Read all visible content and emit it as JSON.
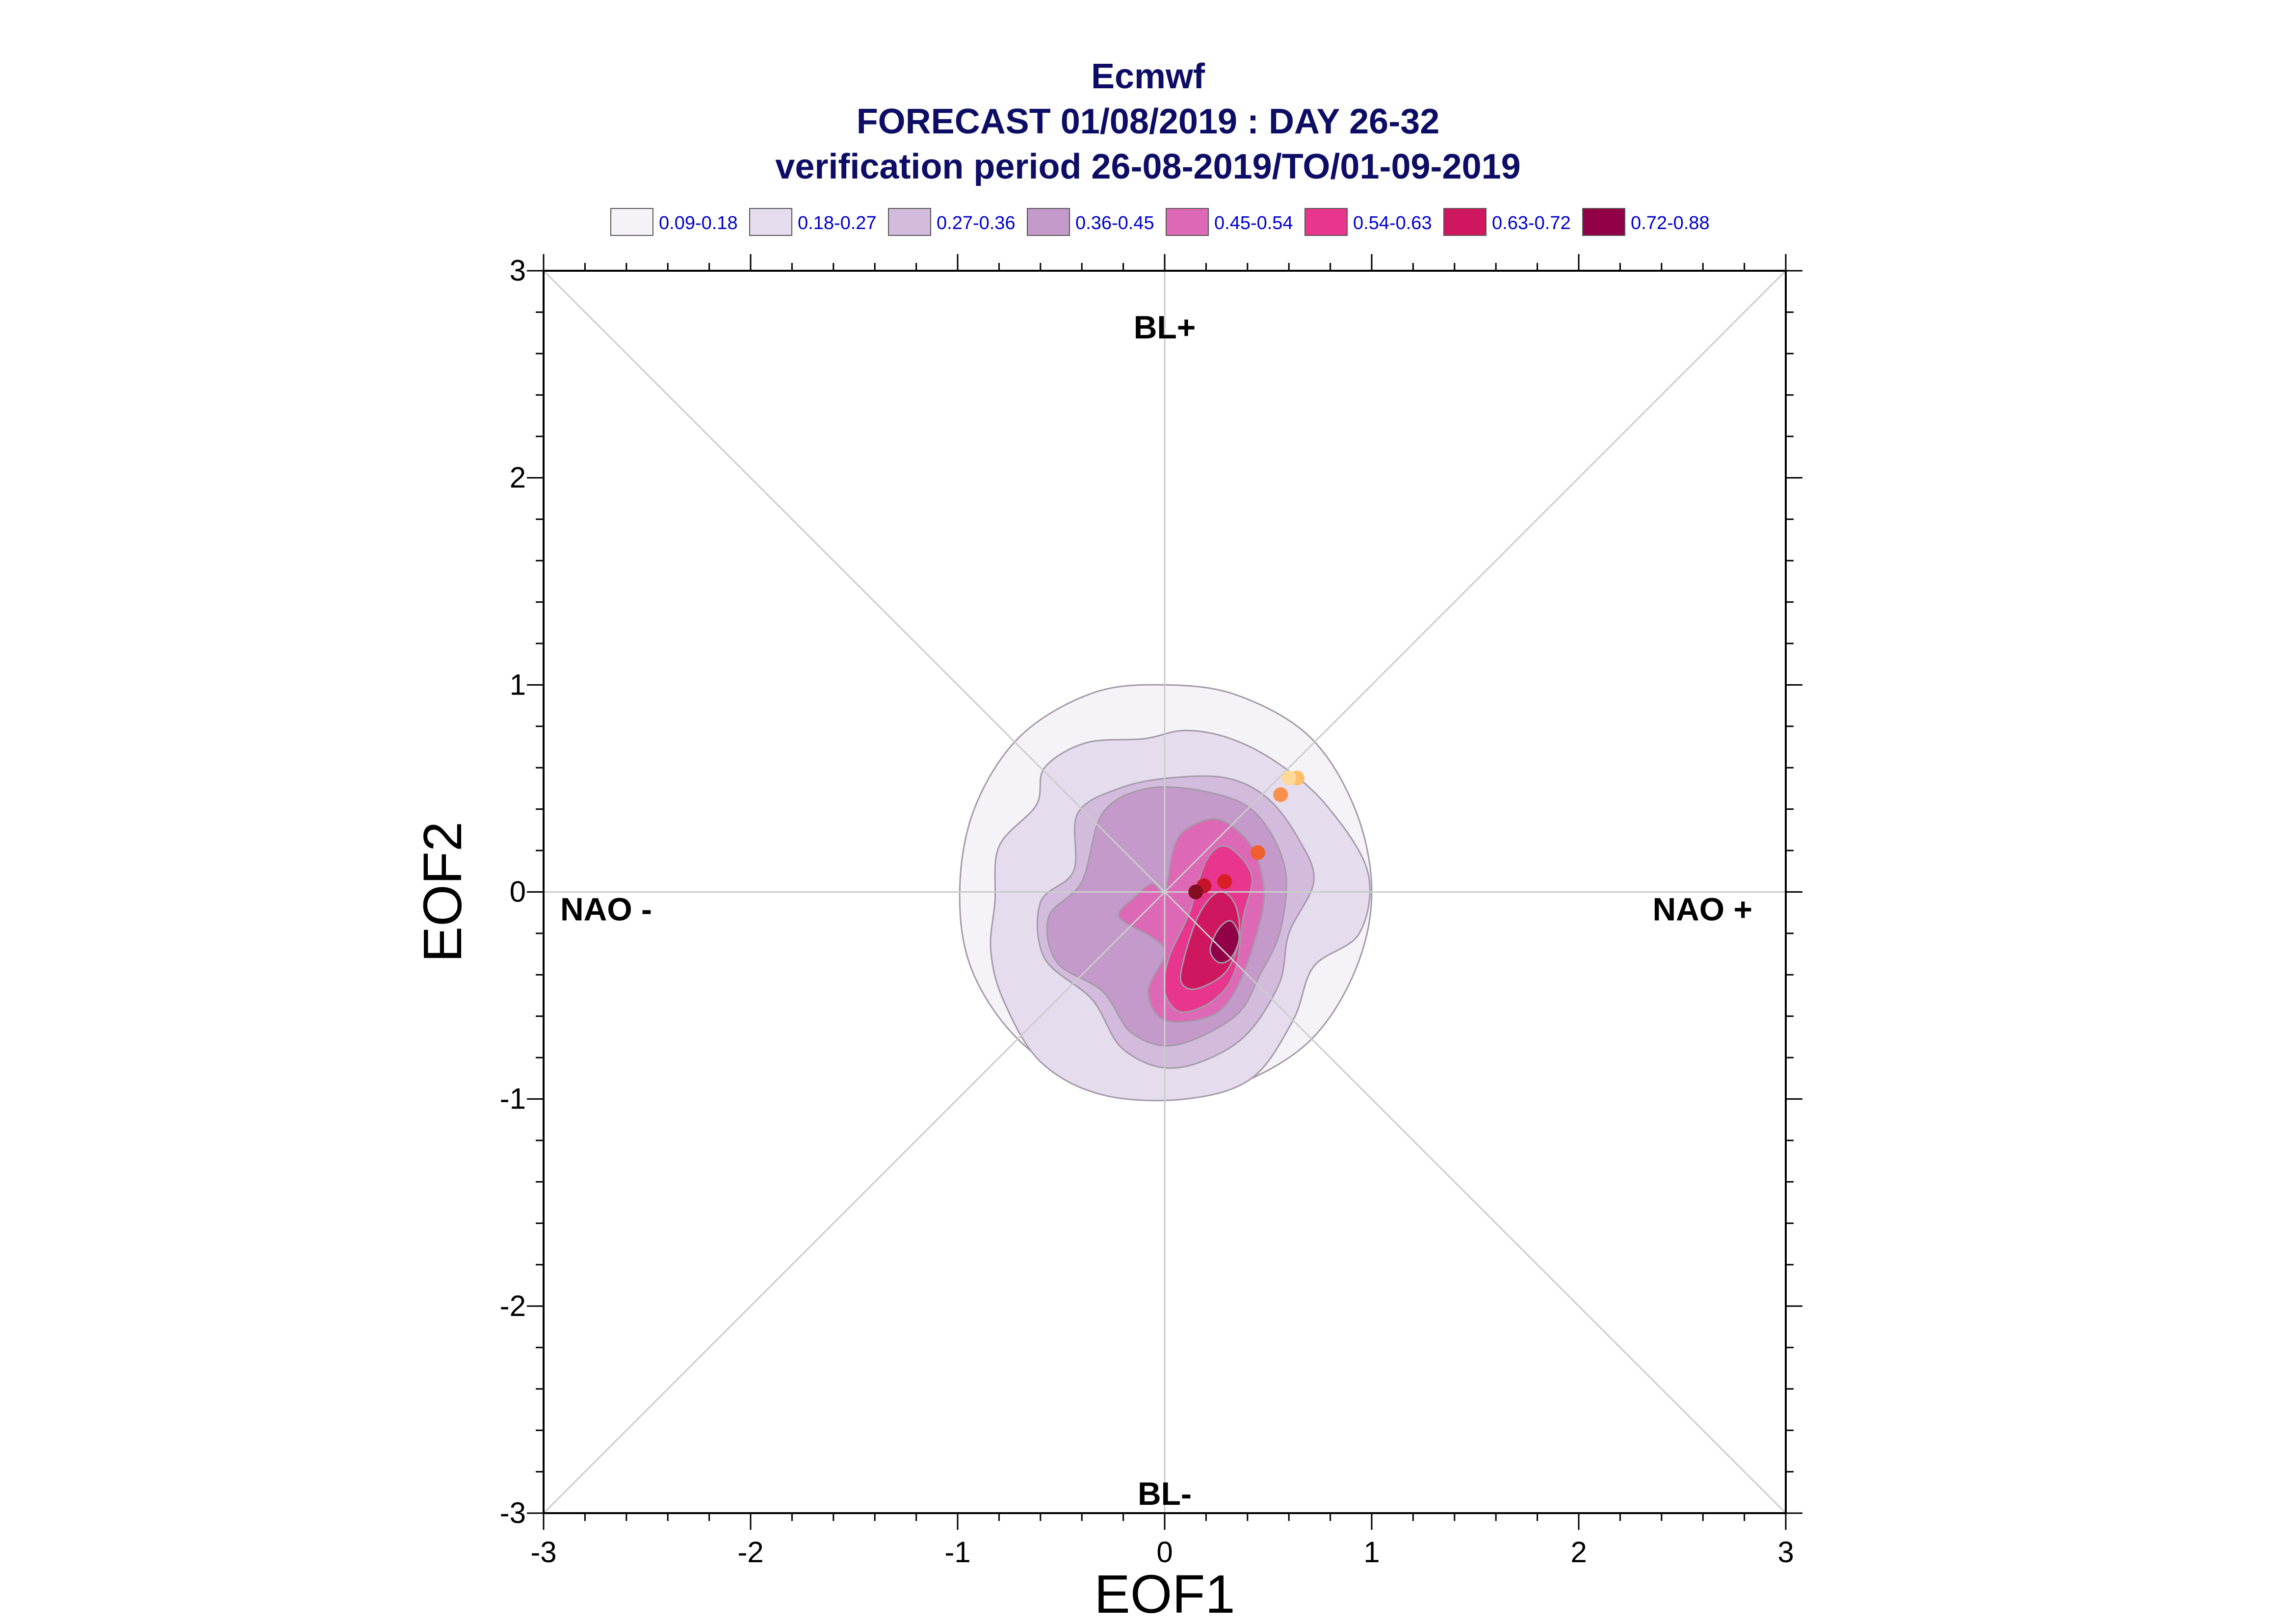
{
  "title": {
    "line1": "Ecmwf",
    "line2": "FORECAST 01/08/2019 : DAY 26-32",
    "line3": "verification period 26-08-2019/TO/01-09-2019"
  },
  "colors": {
    "title": "#0d0d66",
    "legend_text": "#0000cc",
    "guide_lines": "#cccccc",
    "contour_lines": "#a49aa8"
  },
  "legend": [
    {
      "label": "0.09-0.18",
      "color": "#f6f3f8"
    },
    {
      "label": "0.18-0.27",
      "color": "#e5dcee"
    },
    {
      "label": "0.27-0.36",
      "color": "#d3bbdd"
    },
    {
      "label": "0.36-0.45",
      "color": "#c49acb"
    },
    {
      "label": "0.45-0.54",
      "color": "#dc68b6"
    },
    {
      "label": "0.54-0.63",
      "color": "#e8358e"
    },
    {
      "label": "0.63-0.72",
      "color": "#cf1760"
    },
    {
      "label": "0.72-0.88",
      "color": "#920047"
    }
  ],
  "chart_data": {
    "type": "contour",
    "xlabel": "EOF1",
    "ylabel": "EOF2",
    "xlim": [
      -3,
      3
    ],
    "ylim": [
      -3,
      3
    ],
    "xticks": [
      "-3",
      "-2",
      "-1",
      "0",
      "1",
      "2",
      "3"
    ],
    "yticks": [
      "-3",
      "-2",
      "-1",
      "0",
      "1",
      "2",
      "3"
    ],
    "regions": {
      "top": "BL+",
      "bottom": "BL-",
      "left": "NAO -",
      "right": "NAO +"
    },
    "levels": [
      0.09,
      0.18,
      0.27,
      0.36,
      0.45,
      0.54,
      0.63,
      0.72,
      0.88
    ],
    "contours": [
      {
        "level": "0.09-0.18",
        "points": [
          [
            -0.99,
            0
          ],
          [
            -0.92,
            0.4
          ],
          [
            -0.7,
            0.75
          ],
          [
            -0.35,
            0.96
          ],
          [
            0,
            1.0
          ],
          [
            0.35,
            0.95
          ],
          [
            0.7,
            0.75
          ],
          [
            0.92,
            0.4
          ],
          [
            1.0,
            0
          ],
          [
            0.92,
            -0.38
          ],
          [
            0.7,
            -0.72
          ],
          [
            0.35,
            -0.93
          ],
          [
            0,
            -0.99
          ],
          [
            -0.35,
            -0.94
          ],
          [
            -0.7,
            -0.72
          ],
          [
            -0.93,
            -0.38
          ]
        ]
      },
      {
        "level": "0.18-0.27",
        "points": [
          [
            -0.82,
            -0.05
          ],
          [
            -0.8,
            0.22
          ],
          [
            -0.62,
            0.42
          ],
          [
            -0.58,
            0.6
          ],
          [
            -0.38,
            0.72
          ],
          [
            -0.1,
            0.74
          ],
          [
            0.1,
            0.78
          ],
          [
            0.32,
            0.74
          ],
          [
            0.55,
            0.62
          ],
          [
            0.78,
            0.42
          ],
          [
            0.98,
            0.1
          ],
          [
            0.94,
            -0.2
          ],
          [
            0.72,
            -0.36
          ],
          [
            0.62,
            -0.62
          ],
          [
            0.42,
            -0.9
          ],
          [
            0.1,
            -1.0
          ],
          [
            -0.3,
            -0.98
          ],
          [
            -0.6,
            -0.82
          ],
          [
            -0.78,
            -0.52
          ],
          [
            -0.84,
            -0.28
          ]
        ]
      },
      {
        "level": "0.27-0.36",
        "points": [
          [
            -0.58,
            -0.32
          ],
          [
            -0.6,
            -0.05
          ],
          [
            -0.44,
            0.1
          ],
          [
            -0.42,
            0.38
          ],
          [
            -0.22,
            0.5
          ],
          [
            0.02,
            0.55
          ],
          [
            0.3,
            0.55
          ],
          [
            0.5,
            0.45
          ],
          [
            0.65,
            0.25
          ],
          [
            0.72,
            0.05
          ],
          [
            0.6,
            -0.2
          ],
          [
            0.55,
            -0.45
          ],
          [
            0.36,
            -0.72
          ],
          [
            0.05,
            -0.85
          ],
          [
            -0.2,
            -0.76
          ],
          [
            -0.35,
            -0.52
          ]
        ]
      },
      {
        "level": "0.36-0.45",
        "points": [
          [
            -0.52,
            -0.34
          ],
          [
            -0.56,
            -0.12
          ],
          [
            -0.4,
            0.05
          ],
          [
            -0.3,
            0.38
          ],
          [
            -0.08,
            0.5
          ],
          [
            0.22,
            0.48
          ],
          [
            0.44,
            0.38
          ],
          [
            0.58,
            0.12
          ],
          [
            0.56,
            -0.18
          ],
          [
            0.46,
            -0.4
          ],
          [
            0.34,
            -0.6
          ],
          [
            0.05,
            -0.74
          ],
          [
            -0.16,
            -0.68
          ],
          [
            -0.3,
            -0.48
          ]
        ]
      },
      {
        "level": "0.45-0.54",
        "points": [
          [
            -0.22,
            -0.12
          ],
          [
            -0.14,
            -0.02
          ],
          [
            -0.06,
            0.04
          ],
          [
            0,
            0.0
          ],
          [
            0.04,
            0.2
          ],
          [
            0.1,
            0.3
          ],
          [
            0.26,
            0.35
          ],
          [
            0.42,
            0.22
          ],
          [
            0.48,
            0.0
          ],
          [
            0.44,
            -0.22
          ],
          [
            0.34,
            -0.48
          ],
          [
            0.22,
            -0.6
          ],
          [
            0.0,
            -0.62
          ],
          [
            -0.08,
            -0.48
          ],
          [
            0.0,
            -0.3
          ],
          [
            -0.06,
            -0.22
          ]
        ]
      },
      {
        "level": "0.54-0.63",
        "points": [
          [
            0.02,
            -0.32
          ],
          [
            0.12,
            -0.1
          ],
          [
            0.2,
            0.15
          ],
          [
            0.3,
            0.22
          ],
          [
            0.42,
            0.08
          ],
          [
            0.38,
            -0.12
          ],
          [
            0.34,
            -0.38
          ],
          [
            0.24,
            -0.52
          ],
          [
            0.08,
            -0.58
          ],
          [
            0.0,
            -0.48
          ]
        ]
      },
      {
        "level": "0.63-0.72",
        "points": [
          [
            0.08,
            -0.38
          ],
          [
            0.16,
            -0.12
          ],
          [
            0.26,
            0.0
          ],
          [
            0.34,
            -0.06
          ],
          [
            0.36,
            -0.22
          ],
          [
            0.3,
            -0.38
          ],
          [
            0.18,
            -0.46
          ],
          [
            0.1,
            -0.46
          ]
        ]
      },
      {
        "level": "0.72-0.88",
        "points": [
          [
            0.22,
            -0.28
          ],
          [
            0.26,
            -0.18
          ],
          [
            0.32,
            -0.14
          ],
          [
            0.36,
            -0.22
          ],
          [
            0.32,
            -0.32
          ],
          [
            0.26,
            -0.34
          ]
        ]
      }
    ],
    "points": [
      {
        "x": 0.64,
        "y": 0.55,
        "color": "#fdbf6a"
      },
      {
        "x": 0.6,
        "y": 0.55,
        "color": "#fdd99a"
      },
      {
        "x": 0.56,
        "y": 0.47,
        "color": "#f7904c"
      },
      {
        "x": 0.45,
        "y": 0.19,
        "color": "#f0602e"
      },
      {
        "x": 0.29,
        "y": 0.05,
        "color": "#d91e26"
      },
      {
        "x": 0.19,
        "y": 0.03,
        "color": "#c4132a"
      },
      {
        "x": 0.15,
        "y": 0.0,
        "color": "#820e20"
      }
    ]
  }
}
